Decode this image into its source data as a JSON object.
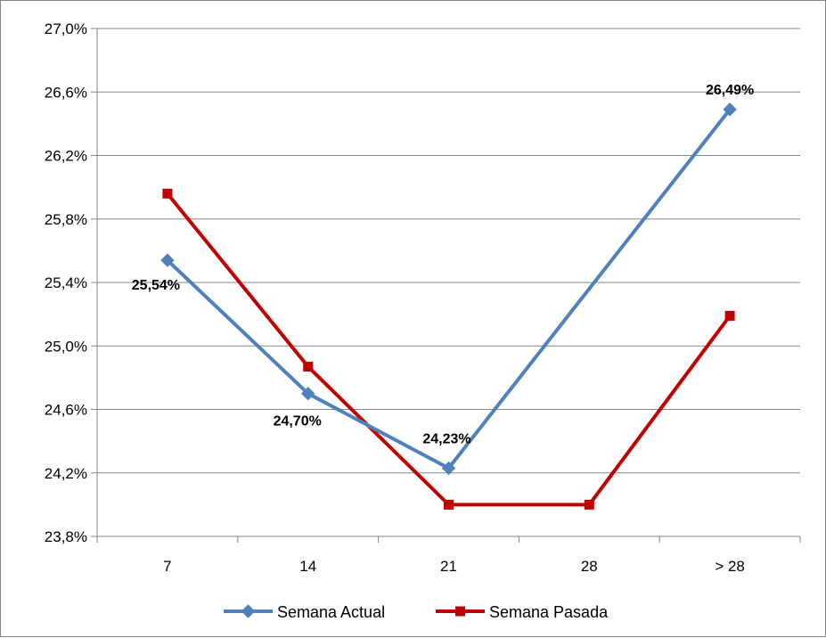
{
  "chart_data": {
    "type": "line",
    "title": "",
    "xlabel": "",
    "ylabel": "",
    "categories": [
      "7",
      "14",
      "21",
      "28",
      "> 28"
    ],
    "y_ticks": [
      "23,8%",
      "24,2%",
      "24,6%",
      "25,0%",
      "25,4%",
      "25,8%",
      "26,2%",
      "26,6%",
      "27,0%"
    ],
    "ylim": [
      23.8,
      27.0
    ],
    "y_step": 0.4,
    "grid": true,
    "legend_position": "bottom",
    "series": [
      {
        "name": "Semana Actual",
        "color": "#4F81BD",
        "marker": "diamond",
        "values": [
          25.54,
          24.7,
          24.23,
          null,
          26.49
        ],
        "data_labels": [
          "25,54%",
          "24,70%",
          "24,23%",
          null,
          "26,49%"
        ]
      },
      {
        "name": "Semana Pasada",
        "color": "#C00000",
        "marker": "square",
        "values": [
          25.96,
          24.87,
          24.0,
          24.0,
          25.19
        ],
        "data_labels": [
          null,
          null,
          null,
          null,
          null
        ]
      }
    ]
  }
}
